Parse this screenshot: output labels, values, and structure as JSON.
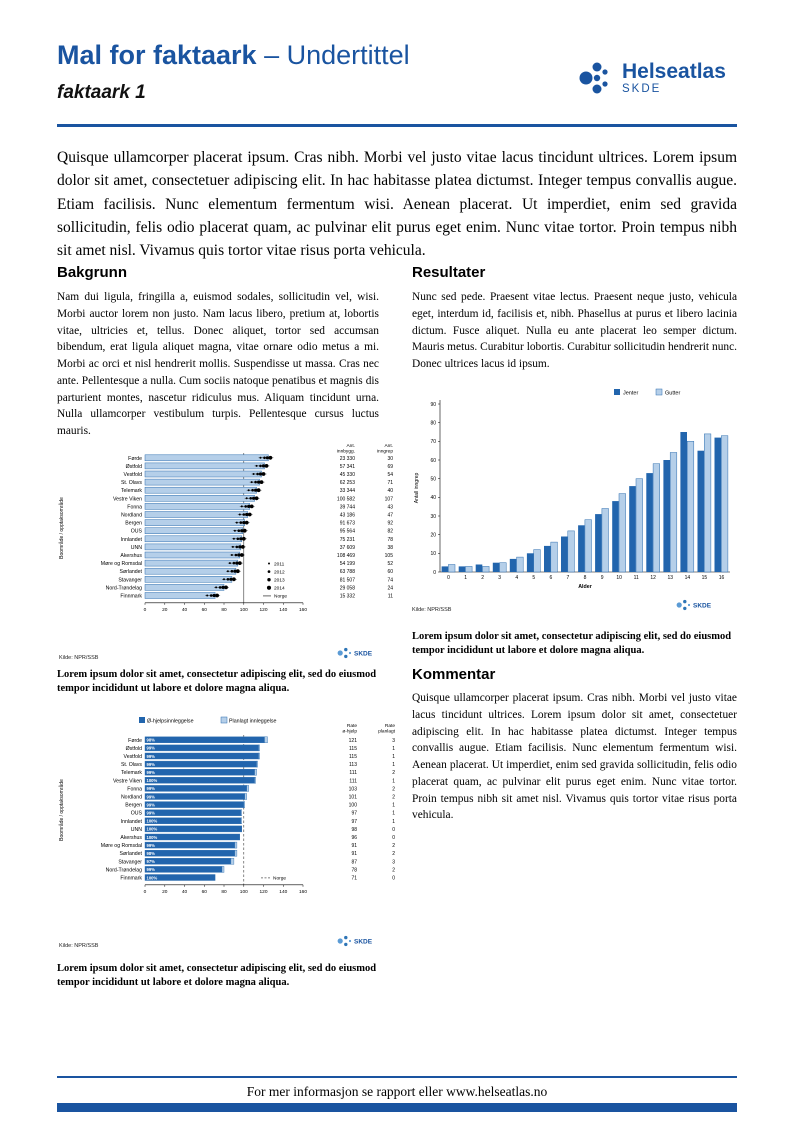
{
  "header": {
    "title": "Mal for faktaark",
    "title_suffix": " – Undertittel",
    "docname": "faktaark 1",
    "logo_text": "Helseatlas",
    "logo_sub": "SKDE"
  },
  "intro": "Quisque ullamcorper placerat ipsum. Cras nibh. Morbi vel justo vitae lacus tincidunt ultrices. Lorem ipsum dolor sit amet, consectetuer adipiscing elit. In hac habitasse platea dictumst. Integer tempus convallis augue. Etiam facilisis. Nunc elementum fermentum wisi. Aenean placerat. Ut imperdiet, enim sed gravida sollicitudin, felis odio placerat quam, ac pulvinar elit purus eget enim. Nunc vitae tortor. Proin tempus nibh sit amet nisl. Vivamus quis tortor vitae risus porta vehicula.",
  "sections": {
    "bakgrunn": {
      "heading": "Bakgrunn",
      "body": "Nam dui ligula, fringilla a, euismod sodales, sollicitudin vel, wisi. Morbi auctor lorem non justo. Nam lacus libero, pretium at, lobortis vitae, ultricies et, tellus. Donec aliquet, tortor sed accumsan bibendum, erat ligula aliquet magna, vitae ornare odio metus a mi. Morbi ac orci et nisl hendrerit mollis. Suspendisse ut massa. Cras nec ante. Pellentesque a nulla. Cum sociis natoque penatibus et magnis dis parturient montes, nascetur ridiculus mus. Aliquam tincidunt urna. Nulla ullamcorper vestibulum turpis. Pellentesque cursus luctus mauris."
    },
    "resultater": {
      "heading": "Resultater",
      "body": "Nunc sed pede. Praesent vitae lectus. Praesent neque justo, vehicula eget, interdum id, facilisis et, nibh. Phasellus at purus et libero lacinia dictum. Fusce aliquet. Nulla eu ante placerat leo semper dictum. Mauris metus. Curabitur lobortis. Curabitur sollicitudin hendrerit nunc. Donec ultrices lacus id ipsum."
    },
    "kommentar": {
      "heading": "Kommentar",
      "body": "Quisque ullamcorper placerat ipsum. Cras nibh. Morbi vel justo vitae lacus tincidunt ultrices. Lorem ipsum dolor sit amet, consectetuer adipiscing elit. In hac habitasse platea dictumst. Integer tempus convallis augue. Etiam facilisis. Nunc elementum fermentum wisi. Aenean placerat. Ut imperdiet, enim sed gravida sollicitudin, felis odio placerat quam, ac pulvinar elit purus eget enim. Nunc vitae tortor. Proin tempus nibh sit amet nisl. Vivamus quis tortor vitae risus porta vehicula."
    }
  },
  "captions": {
    "chart1": "Lorem ipsum dolor sit amet, consectetur adipiscing elit, sed do eiusmod tempor incididunt ut labore et dolore magna aliqua.",
    "chart2": "Lorem ipsum dolor sit amet, consectetur adipiscing elit, sed do eiusmod tempor incididunt ut labore et dolore magna aliqua.",
    "chart3": "Lorem ipsum dolor sit amet, consectetur adipiscing elit, sed do eiusmod tempor incididunt ut labore et dolore magna aliqua."
  },
  "footer": {
    "text": "For mer informasjon se rapport eller www.helseatlas.no"
  },
  "colors": {
    "brand": "#1a54a0",
    "bar_light": "#b5cfe9",
    "bar_stroke": "#2e6fb0",
    "bar_dark": "#2265ad"
  },
  "chart_data": [
    {
      "id": "rates-by-bostedsomrade",
      "type": "bar",
      "orientation": "horizontal",
      "ylabel": "Boområde / opptaksområde",
      "xlim": [
        0,
        160
      ],
      "xticks": [
        0,
        20,
        40,
        60,
        80,
        100,
        120,
        140,
        160
      ],
      "categories": [
        "Førde",
        "Østfold",
        "Vestfold",
        "St. Olavs",
        "Telemark",
        "Vestre Viken",
        "Fonna",
        "Nordland",
        "Bergen",
        "OUS",
        "Innlandet",
        "UNN",
        "Akershus",
        "Møre og Romsdal",
        "Sørlandet",
        "Stavanger",
        "Nord-Trøndelag",
        "Finnmark"
      ],
      "values": [
        125,
        121,
        118,
        116,
        113,
        111,
        106,
        104,
        101,
        99,
        98,
        97,
        96,
        94,
        92,
        88,
        80,
        71
      ],
      "col1_header": [
        "Ant.",
        "innbygg."
      ],
      "col2_header": [
        "Ant.",
        "inngrep"
      ],
      "col1_values": [
        "23 330",
        "57 341",
        "45 330",
        "62 253",
        "33 344",
        "100 582",
        "39 744",
        "43 186",
        "91 673",
        "95 564",
        "75 231",
        "37 609",
        "108 469",
        "54 199",
        "63 788",
        "81 507",
        "29 058",
        "15 332"
      ],
      "col2_values": [
        30,
        69,
        54,
        71,
        40,
        107,
        43,
        47,
        92,
        82,
        78,
        38,
        105,
        52,
        60,
        74,
        24,
        11
      ],
      "legend_years": [
        "2011",
        "2012",
        "2013",
        "2014"
      ],
      "norge": 100,
      "norge_label": "Norge",
      "source": "Kilde: NPR/SSB",
      "logo": "SKDE"
    },
    {
      "id": "inngrep-by-alder",
      "type": "bar",
      "orientation": "vertical",
      "categories": [
        "0",
        "1",
        "2",
        "3",
        "4",
        "5",
        "6",
        "7",
        "8",
        "9",
        "10",
        "11",
        "12",
        "13",
        "14",
        "15",
        "16"
      ],
      "series": [
        {
          "name": "Jenter",
          "values": [
            3,
            3,
            4,
            5,
            7,
            10,
            14,
            19,
            25,
            31,
            38,
            46,
            53,
            60,
            75,
            65,
            72
          ]
        },
        {
          "name": "Gutter",
          "values": [
            4,
            3,
            3,
            5,
            8,
            12,
            16,
            22,
            28,
            34,
            42,
            50,
            58,
            64,
            70,
            74,
            73
          ]
        }
      ],
      "xlabel": "Alder",
      "ylabel": "Antall inngrep",
      "ylim": [
        0,
        90
      ],
      "yticks": [
        0,
        10,
        20,
        30,
        40,
        50,
        60,
        70,
        80,
        90
      ],
      "source": "Kilde: NPR/SSB",
      "logo": "SKDE"
    },
    {
      "id": "innleggelse-stacked",
      "type": "bar",
      "orientation": "horizontal",
      "stacked": true,
      "ylabel": "Boområde / opptaksområde",
      "xlim": [
        0,
        160
      ],
      "xticks": [
        0,
        20,
        40,
        60,
        80,
        100,
        120,
        140,
        160
      ],
      "categories": [
        "Førde",
        "Østfold",
        "Vestfold",
        "St. Olavs",
        "Telemark",
        "Vestre Viken",
        "Fonna",
        "Nordland",
        "Bergen",
        "OUS",
        "Innlandet",
        "UNN",
        "Akershus",
        "Møre og Romsdal",
        "Sørlandet",
        "Stavanger",
        "Nord-Trøndelag",
        "Finnmark"
      ],
      "series": [
        {
          "name": "Ø-hjelpsinnleggelse",
          "values": [
            121,
            115,
            115,
            113,
            111,
            111,
            103,
            101,
            100,
            97,
            97,
            98,
            96,
            91,
            91,
            87,
            78,
            71
          ]
        },
        {
          "name": "Planlagt innleggelse",
          "values": [
            3,
            1,
            1,
            1,
            2,
            1,
            2,
            2,
            1,
            1,
            1,
            0,
            0,
            2,
            2,
            3,
            2,
            0
          ]
        }
      ],
      "pct_labels": [
        "98%",
        "99%",
        "99%",
        "99%",
        "99%",
        "100%",
        "99%",
        "99%",
        "99%",
        "99%",
        "100%",
        "100%",
        "100%",
        "99%",
        "98%",
        "97%",
        "99%",
        "100%"
      ],
      "col1_header": [
        "Rate",
        "ø-hjelp"
      ],
      "col2_header": [
        "Rate",
        "planlagt"
      ],
      "norge": 100,
      "norge_label": "Norge",
      "source": "Kilde: NPR/SSB",
      "logo": "SKDE"
    }
  ]
}
